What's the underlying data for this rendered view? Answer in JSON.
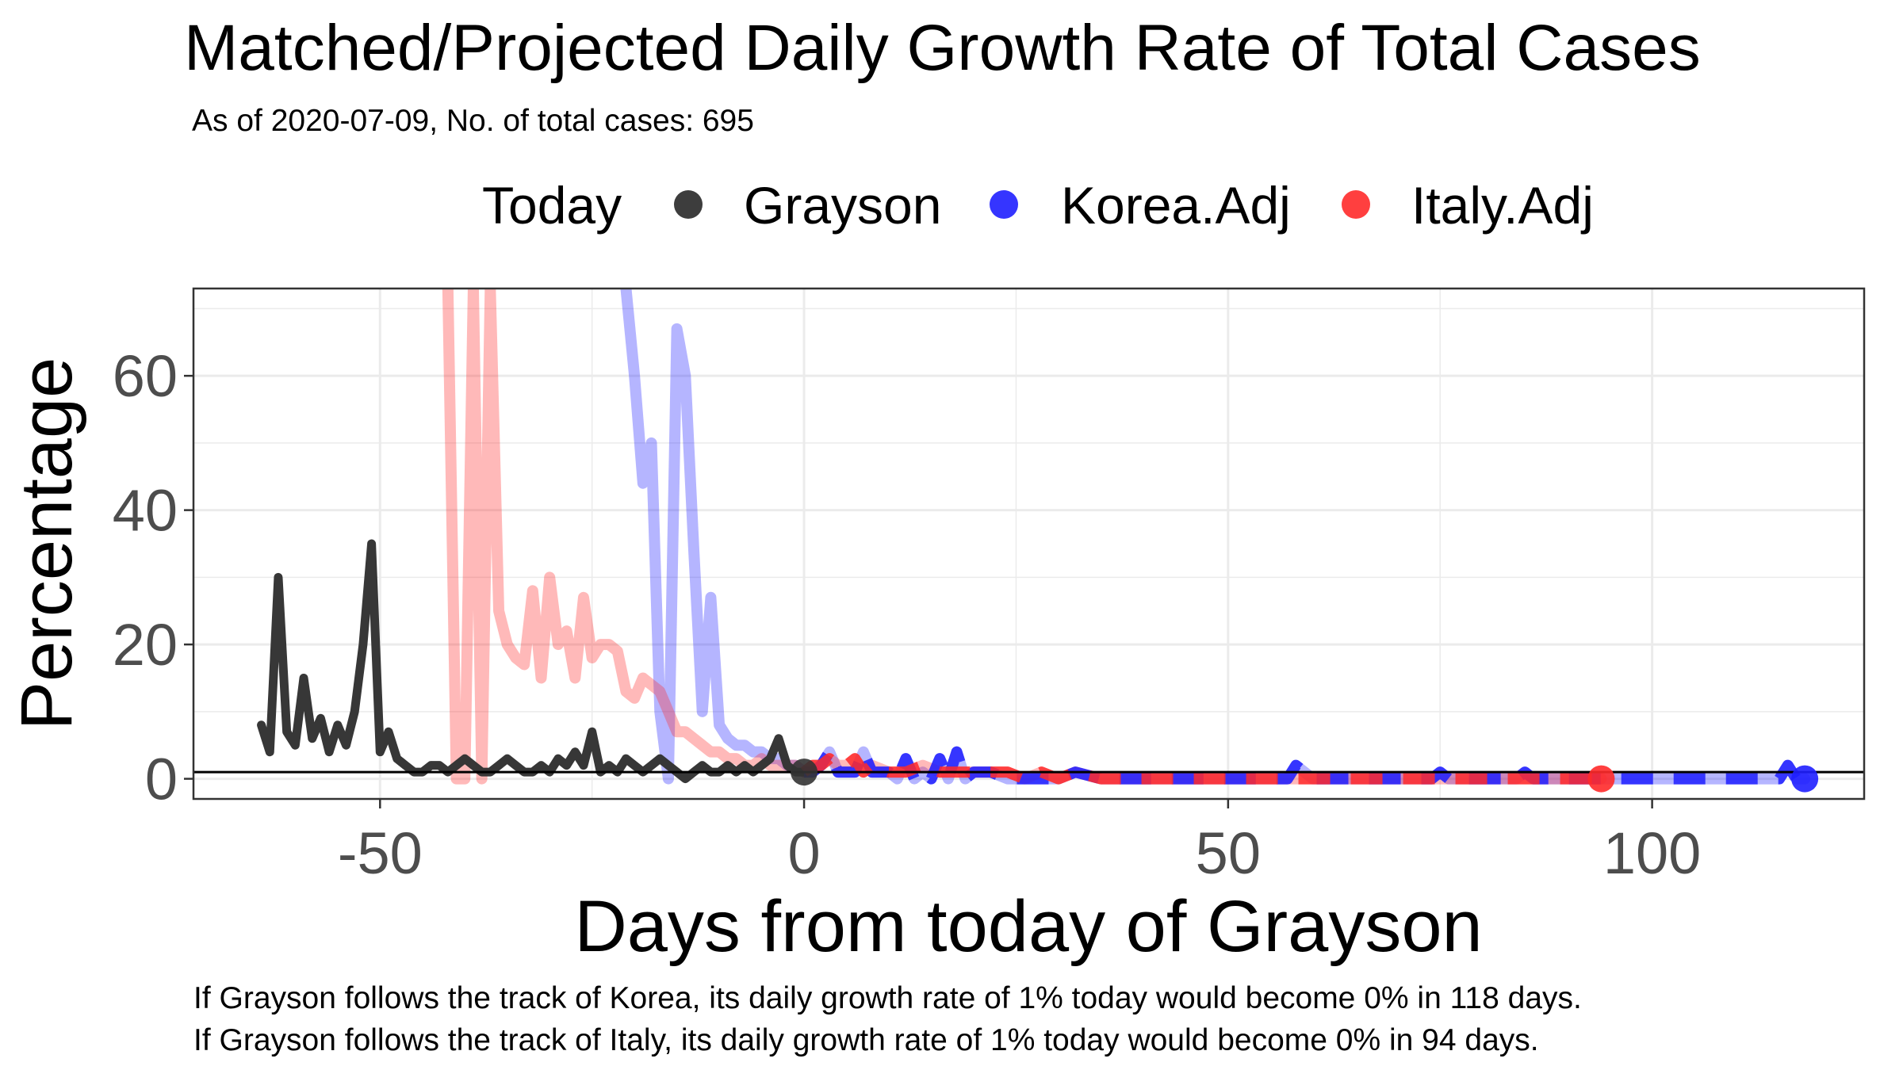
{
  "chart_data": {
    "type": "line",
    "title": "Matched/Projected Daily Growth Rate of Total Cases",
    "subtitle": "As of 2020-07-09, No. of total cases: 695",
    "xlabel": "Days from today of Grayson",
    "ylabel": "Percentage",
    "xlim": [
      -72,
      125
    ],
    "ylim": [
      -3,
      73
    ],
    "xticks": [
      -50,
      0,
      50,
      100
    ],
    "yticks": [
      0,
      20,
      40,
      60
    ],
    "grid": true,
    "legend_position": "top",
    "legend": {
      "title": "Today",
      "items": [
        {
          "label": "Grayson",
          "color": "#333333"
        },
        {
          "label": "Korea.Adj",
          "color": "#1f1fff"
        },
        {
          "label": "Italy.Adj",
          "color": "#ff2a2a"
        }
      ]
    },
    "reference_line_y": 1,
    "series": [
      {
        "name": "Grayson",
        "color": "#333333",
        "x": [
          -64,
          -63,
          -62,
          -61,
          -60,
          -59,
          -58,
          -57,
          -56,
          -55,
          -54,
          -53,
          -52,
          -51,
          -50,
          -49,
          -48,
          -47,
          -46,
          -45,
          -44,
          -43,
          -42,
          -41,
          -40,
          -39,
          -38,
          -37,
          -36,
          -35,
          -34,
          -33,
          -32,
          -31,
          -30,
          -29,
          -28,
          -27,
          -26,
          -25,
          -24,
          -23,
          -22,
          -21,
          -20,
          -19,
          -18,
          -17,
          -16,
          -15,
          -14,
          -13,
          -12,
          -11,
          -10,
          -9,
          -8,
          -7,
          -6,
          -5,
          -4,
          -3,
          -2,
          -1,
          0
        ],
        "y": [
          8,
          4,
          30,
          7,
          5,
          15,
          6,
          9,
          4,
          8,
          5,
          10,
          20,
          35,
          4,
          7,
          3,
          2,
          1,
          1,
          2,
          2,
          1,
          2,
          3,
          2,
          1,
          1,
          2,
          3,
          2,
          1,
          1,
          2,
          1,
          3,
          2,
          4,
          2,
          7,
          1,
          2,
          1,
          3,
          2,
          1,
          2,
          3,
          2,
          1,
          0,
          1,
          2,
          1,
          1,
          2,
          1,
          2,
          1,
          2,
          3,
          6,
          2,
          1,
          1
        ]
      },
      {
        "name": "Korea.Adj",
        "color": "#1f1fff",
        "x": [
          -21,
          -20,
          -19,
          -18,
          -17,
          -16,
          -15,
          -14,
          -13,
          -12,
          -11,
          -10,
          -9,
          -8,
          -7,
          -6,
          -5,
          -4,
          -3,
          -2,
          -1,
          0,
          1,
          2,
          3,
          4,
          5,
          6,
          7,
          8,
          9,
          10,
          11,
          12,
          13,
          14,
          15,
          16,
          17,
          18,
          19,
          20,
          22,
          24,
          26,
          28,
          30,
          32,
          35,
          38,
          40,
          45,
          50,
          55,
          57,
          58,
          59,
          60,
          65,
          70,
          74,
          75,
          76,
          80,
          84,
          85,
          86,
          90,
          95,
          100,
          105,
          110,
          115,
          116,
          117,
          118
        ],
        "y": [
          73,
          60,
          44,
          50,
          10,
          0,
          67,
          60,
          34,
          10,
          27,
          8,
          6,
          5,
          5,
          4,
          4,
          3,
          3,
          2,
          2,
          1,
          1,
          2,
          4,
          1,
          1,
          1,
          4,
          1,
          1,
          1,
          0,
          3,
          0,
          1,
          0,
          3,
          0,
          4,
          0,
          1,
          1,
          0,
          0,
          0,
          0,
          1,
          0,
          0,
          0,
          0,
          0,
          0,
          0,
          2,
          1,
          0,
          0,
          0,
          0,
          1,
          0,
          0,
          0,
          1,
          0,
          0,
          0,
          0,
          0,
          0,
          0,
          2,
          0,
          0
        ]
      },
      {
        "name": "Italy.Adj",
        "color": "#ff2a2a",
        "x": [
          -42,
          -41,
          -40,
          -39,
          -38,
          -37,
          -36,
          -35,
          -34,
          -33,
          -32,
          -31,
          -30,
          -29,
          -28,
          -27,
          -26,
          -25,
          -24,
          -23,
          -22,
          -21,
          -20,
          -19,
          -18,
          -17,
          -16,
          -15,
          -14,
          -13,
          -12,
          -11,
          -10,
          -9,
          -8,
          -7,
          -6,
          -5,
          -4,
          -3,
          -2,
          -1,
          0,
          1,
          2,
          3,
          4,
          5,
          6,
          7,
          8,
          10,
          12,
          14,
          16,
          18,
          20,
          22,
          24,
          26,
          28,
          30,
          32,
          35,
          40,
          45,
          50,
          55,
          60,
          65,
          70,
          75,
          80,
          85,
          90,
          94
        ],
        "y": [
          73,
          0,
          0,
          73,
          0,
          73,
          25,
          20,
          18,
          17,
          28,
          15,
          30,
          20,
          22,
          15,
          27,
          18,
          20,
          20,
          19,
          13,
          12,
          15,
          14,
          13,
          10,
          7,
          7,
          6,
          5,
          4,
          4,
          3,
          3,
          2,
          2,
          3,
          2,
          2,
          2,
          2,
          1,
          2,
          2,
          3,
          2,
          2,
          3,
          1,
          2,
          1,
          1,
          2,
          1,
          1,
          1,
          1,
          1,
          0,
          1,
          0,
          1,
          0,
          0,
          0,
          0,
          0,
          0,
          0,
          0,
          0,
          0,
          0,
          0,
          0
        ]
      }
    ],
    "notes": [
      "If Grayson follows the track of Korea, its daily growth rate of 1% today would become 0% in 118 days.",
      "If Grayson follows the track of Italy, its daily growth rate of 1% today would become 0% in 94 days."
    ]
  }
}
